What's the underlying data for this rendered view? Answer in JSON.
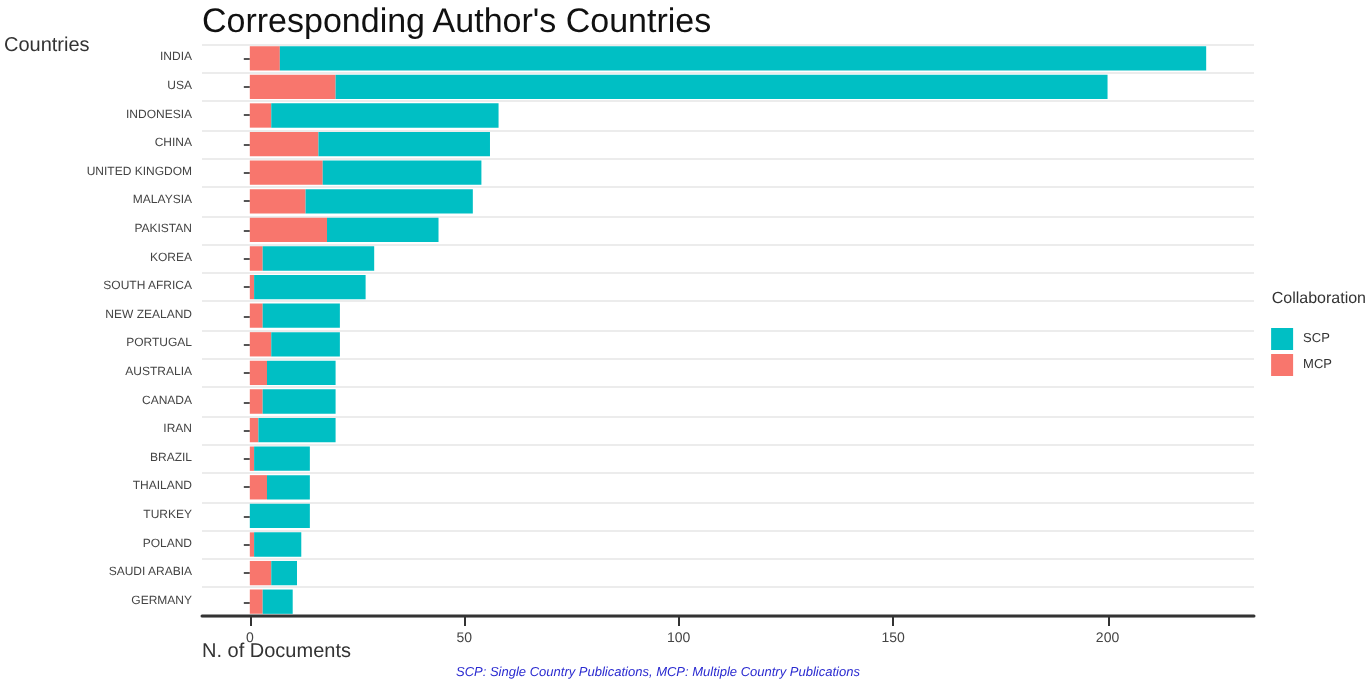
{
  "chart_data": {
    "type": "bar",
    "orientation": "horizontal",
    "stacked": true,
    "title": "Corresponding Author's Countries",
    "xlabel": "N. of Documents",
    "ylabel": "Countries",
    "legend_title": "Collaboration",
    "annotations": [
      "SCP: Single Country Publications, MCP: Multiple Country Publications"
    ],
    "categories": [
      "INDIA",
      "USA",
      "INDONESIA",
      "CHINA",
      "UNITED KINGDOM",
      "MALAYSIA",
      "PAKISTAN",
      "KOREA",
      "SOUTH AFRICA",
      "NEW ZEALAND",
      "PORTUGAL",
      "AUSTRALIA",
      "CANADA",
      "IRAN",
      "BRAZIL",
      "THAILAND",
      "TURKEY",
      "POLAND",
      "SAUDI ARABIA",
      "GERMANY"
    ],
    "series": [
      {
        "name": "MCP",
        "color": "#f8766d",
        "values": [
          7,
          20,
          5,
          16,
          17,
          13,
          18,
          3,
          1,
          3,
          5,
          4,
          3,
          2,
          1,
          4,
          0,
          1,
          5,
          3
        ]
      },
      {
        "name": "SCP",
        "color": "#00bfc4",
        "values": [
          216,
          180,
          53,
          40,
          37,
          39,
          26,
          26,
          26,
          18,
          16,
          16,
          17,
          18,
          13,
          10,
          14,
          11,
          6,
          7
        ]
      }
    ],
    "xlim": [
      -11.15,
      234.15
    ],
    "xticks": [
      0,
      50,
      100,
      150,
      200
    ],
    "grid": "y",
    "legend": "right"
  }
}
